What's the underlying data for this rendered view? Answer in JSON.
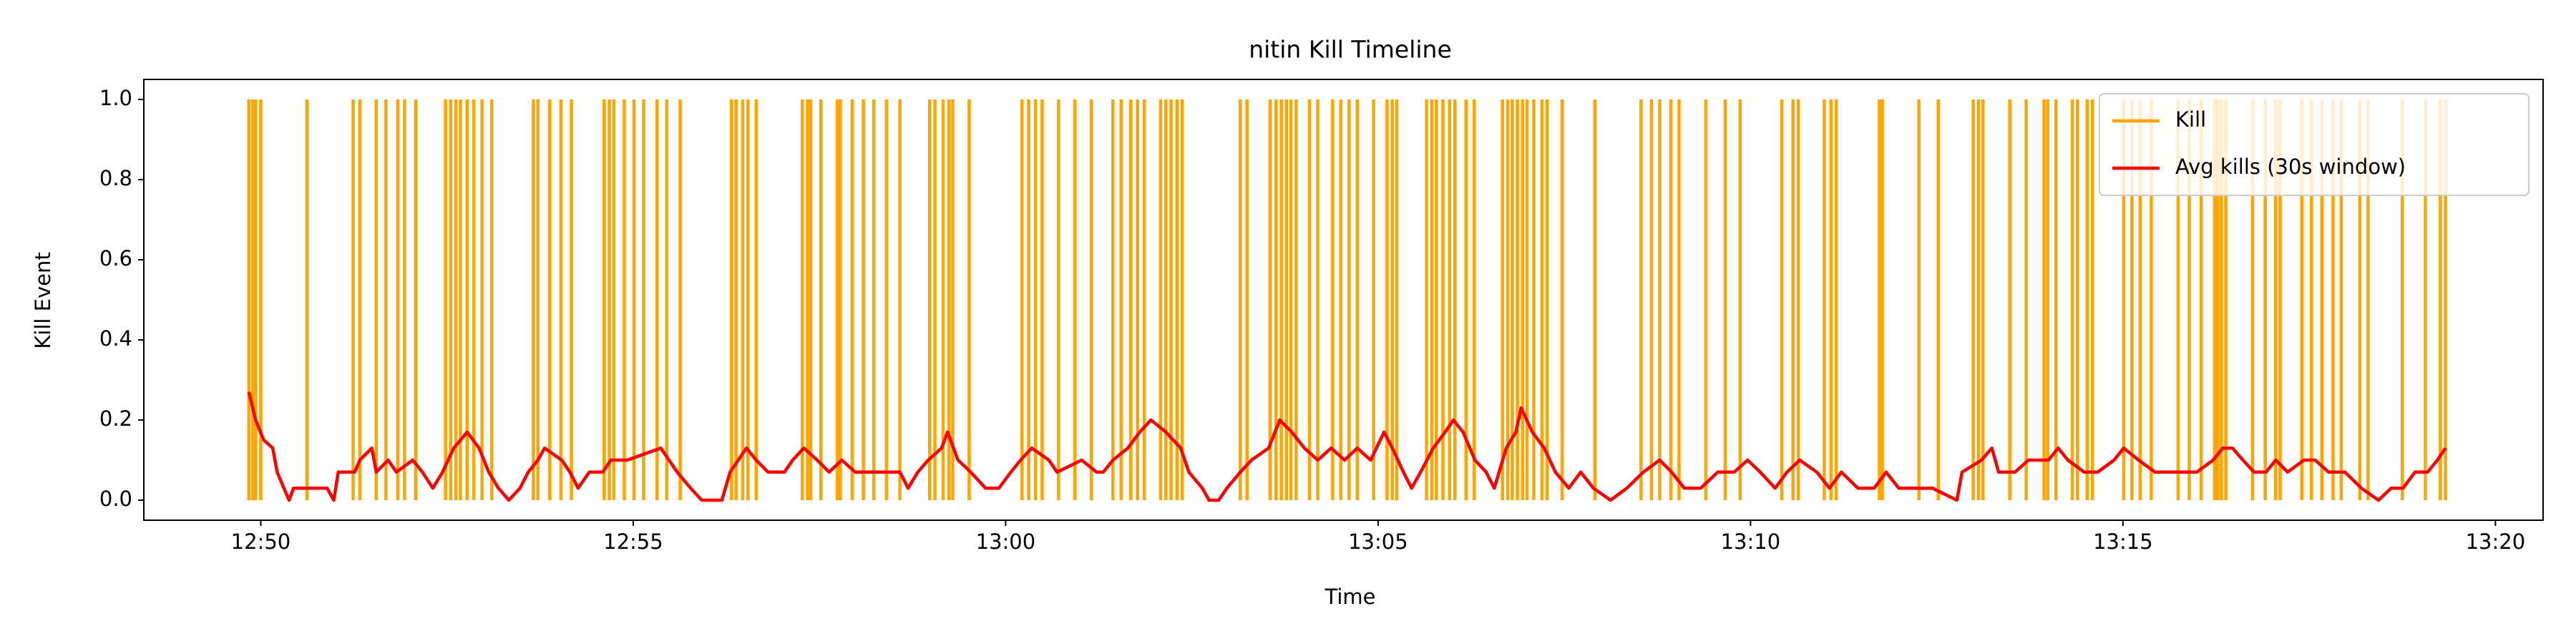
{
  "chart_data": {
    "type": "line",
    "title": "nitin Kill Timeline",
    "xlabel": "Time",
    "ylabel": "Kill Event",
    "xlim": [
      768.43,
      800.64
    ],
    "ylim": [
      -0.05,
      1.05
    ],
    "xticks": [
      {
        "value": 770,
        "label": "12:50"
      },
      {
        "value": 775,
        "label": "12:55"
      },
      {
        "value": 780,
        "label": "13:00"
      },
      {
        "value": 785,
        "label": "13:05"
      },
      {
        "value": 790,
        "label": "13:10"
      },
      {
        "value": 795,
        "label": "13:15"
      },
      {
        "value": 800,
        "label": "13:20"
      }
    ],
    "yticks": [
      {
        "value": 0,
        "label": "0.0"
      },
      0.2,
      0.4,
      0.6,
      0.8,
      {
        "value": 1,
        "label": "1.0"
      }
    ],
    "legend": "upper right",
    "series": [
      {
        "name": "Kill",
        "color": "orange",
        "mark": "vlines",
        "x": [
          769.84,
          769.89,
          769.93,
          770.0,
          770.62,
          771.24,
          771.33,
          771.55,
          771.68,
          771.84,
          771.93,
          772.08,
          772.48,
          772.55,
          772.62,
          772.68,
          772.77,
          772.86,
          772.97,
          773.1,
          773.66,
          773.72,
          773.88,
          774.03,
          774.17,
          774.61,
          774.68,
          774.74,
          774.88,
          775.01,
          775.14,
          775.32,
          775.45,
          775.63,
          776.32,
          776.38,
          776.47,
          776.54,
          776.65,
          777.27,
          777.34,
          777.38,
          777.52,
          777.74,
          777.78,
          777.94,
          778.09,
          778.23,
          778.4,
          778.58,
          778.98,
          779.05,
          779.16,
          779.24,
          779.29,
          779.51,
          780.22,
          780.31,
          780.4,
          780.49,
          780.71,
          780.93,
          781.15,
          781.44,
          781.55,
          781.68,
          781.77,
          781.86,
          782.08,
          782.15,
          782.22,
          782.3,
          782.37,
          783.15,
          783.24,
          783.55,
          783.63,
          783.7,
          783.77,
          783.83,
          783.9,
          784.08,
          784.19,
          784.39,
          784.5,
          784.61,
          784.72,
          784.94,
          785.12,
          785.19,
          785.25,
          785.65,
          785.72,
          785.78,
          785.87,
          785.96,
          786.03,
          786.18,
          786.29,
          786.67,
          786.74,
          786.8,
          786.87,
          786.94,
          787.0,
          787.09,
          787.2,
          787.27,
          787.47,
          787.91,
          788.53,
          788.67,
          788.78,
          788.93,
          789.04,
          789.4,
          789.66,
          789.86,
          790.42,
          790.57,
          790.64,
          790.99,
          791.08,
          791.15,
          791.73,
          791.77,
          792.26,
          792.52,
          792.99,
          793.06,
          793.12,
          793.48,
          793.7,
          793.94,
          793.99,
          794.1,
          794.32,
          794.39,
          794.52,
          794.59,
          795.01,
          795.12,
          795.23,
          795.38,
          795.74,
          795.89,
          796.05,
          796.23,
          796.27,
          796.32,
          796.38,
          796.74,
          796.91,
          797.05,
          797.11,
          797.4,
          797.53,
          797.67,
          797.82,
          797.93,
          798.18,
          798.29,
          798.75,
          799.06,
          799.26,
          799.33
        ],
        "values": [
          1,
          1,
          1,
          1,
          1,
          1,
          1,
          1,
          1,
          1,
          1,
          1,
          1,
          1,
          1,
          1,
          1,
          1,
          1,
          1,
          1,
          1,
          1,
          1,
          1,
          1,
          1,
          1,
          1,
          1,
          1,
          1,
          1,
          1,
          1,
          1,
          1,
          1,
          1,
          1,
          1,
          1,
          1,
          1,
          1,
          1,
          1,
          1,
          1,
          1,
          1,
          1,
          1,
          1,
          1,
          1,
          1,
          1,
          1,
          1,
          1,
          1,
          1,
          1,
          1,
          1,
          1,
          1,
          1,
          1,
          1,
          1,
          1,
          1,
          1,
          1,
          1,
          1,
          1,
          1,
          1,
          1,
          1,
          1,
          1,
          1,
          1,
          1,
          1,
          1,
          1,
          1,
          1,
          1,
          1,
          1,
          1,
          1,
          1,
          1,
          1,
          1,
          1,
          1,
          1,
          1,
          1,
          1,
          1,
          1,
          1,
          1,
          1,
          1,
          1,
          1,
          1,
          1,
          1,
          1,
          1,
          1,
          1,
          1,
          1,
          1,
          1,
          1,
          1,
          1,
          1,
          1,
          1,
          1,
          1,
          1,
          1,
          1,
          1,
          1,
          1,
          1,
          1,
          1,
          1,
          1,
          1,
          1,
          1,
          1,
          1,
          1,
          1,
          1,
          1,
          1,
          1,
          1,
          1,
          1,
          1,
          1,
          1,
          1,
          1,
          1
        ]
      },
      {
        "name": "Avg kills (30s window)",
        "color": "red",
        "mark": "line",
        "x": [
          769.84,
          769.93,
          770.04,
          770.16,
          770.22,
          770.31,
          770.38,
          770.44,
          770.89,
          770.98,
          771.04,
          771.26,
          771.33,
          771.49,
          771.55,
          771.71,
          771.82,
          772.04,
          772.17,
          772.31,
          772.44,
          772.59,
          772.77,
          772.93,
          773.06,
          773.19,
          773.33,
          773.48,
          773.59,
          773.72,
          773.81,
          774.04,
          774.15,
          774.26,
          774.41,
          774.59,
          774.7,
          774.92,
          775.37,
          775.48,
          775.59,
          775.77,
          775.92,
          776.19,
          776.3,
          776.41,
          776.52,
          776.65,
          776.81,
          777.03,
          777.14,
          777.29,
          777.47,
          777.63,
          777.8,
          777.98,
          778.58,
          778.69,
          778.82,
          778.96,
          779.14,
          779.22,
          779.36,
          779.53,
          779.73,
          779.91,
          780.07,
          780.2,
          780.35,
          780.58,
          780.69,
          781.02,
          781.22,
          781.31,
          781.44,
          781.64,
          781.8,
          781.95,
          782.15,
          782.35,
          782.46,
          782.64,
          782.73,
          782.86,
          782.97,
          783.15,
          783.3,
          783.53,
          783.68,
          783.84,
          784.01,
          784.19,
          784.37,
          784.55,
          784.72,
          784.9,
          785.08,
          785.19,
          785.34,
          785.45,
          785.57,
          785.74,
          785.9,
          786.01,
          786.14,
          786.3,
          786.45,
          786.56,
          786.72,
          786.85,
          786.92,
          787.07,
          787.23,
          787.38,
          787.56,
          787.72,
          787.89,
          788.12,
          788.34,
          788.56,
          788.78,
          788.94,
          789.11,
          789.33,
          789.56,
          789.78,
          789.96,
          790.13,
          790.33,
          790.49,
          790.66,
          790.89,
          791.06,
          791.22,
          791.44,
          791.66,
          791.82,
          791.99,
          792.22,
          792.44,
          792.77,
          792.84,
          793.1,
          793.24,
          793.33,
          793.55,
          793.73,
          794.0,
          794.13,
          794.26,
          794.48,
          794.66,
          794.88,
          795.01,
          795.21,
          795.43,
          795.76,
          795.99,
          796.21,
          796.34,
          796.47,
          796.61,
          796.76,
          796.92,
          797.05,
          797.21,
          797.43,
          797.58,
          797.76,
          797.98,
          798.2,
          798.43,
          798.6,
          798.76,
          798.92,
          799.09,
          799.22,
          799.33
        ],
        "values": [
          0.27,
          0.2,
          0.15,
          0.13,
          0.07,
          0.03,
          0,
          0.03,
          0.03,
          0,
          0.07,
          0.07,
          0.1,
          0.13,
          0.07,
          0.1,
          0.07,
          0.1,
          0.07,
          0.03,
          0.07,
          0.13,
          0.17,
          0.13,
          0.07,
          0.03,
          0,
          0.03,
          0.07,
          0.1,
          0.13,
          0.1,
          0.07,
          0.03,
          0.07,
          0.07,
          0.1,
          0.1,
          0.13,
          0.1,
          0.07,
          0.03,
          0,
          0,
          0.07,
          0.1,
          0.13,
          0.1,
          0.07,
          0.07,
          0.1,
          0.13,
          0.1,
          0.07,
          0.1,
          0.07,
          0.07,
          0.03,
          0.07,
          0.1,
          0.13,
          0.17,
          0.1,
          0.07,
          0.03,
          0.03,
          0.07,
          0.1,
          0.13,
          0.1,
          0.07,
          0.1,
          0.07,
          0.07,
          0.1,
          0.13,
          0.17,
          0.2,
          0.17,
          0.13,
          0.07,
          0.03,
          0,
          0,
          0.03,
          0.07,
          0.1,
          0.13,
          0.2,
          0.17,
          0.13,
          0.1,
          0.13,
          0.1,
          0.13,
          0.1,
          0.17,
          0.13,
          0.07,
          0.03,
          0.07,
          0.13,
          0.17,
          0.2,
          0.17,
          0.1,
          0.07,
          0.03,
          0.13,
          0.17,
          0.23,
          0.17,
          0.13,
          0.07,
          0.03,
          0.07,
          0.03,
          0,
          0.03,
          0.07,
          0.1,
          0.07,
          0.03,
          0.03,
          0.07,
          0.07,
          0.1,
          0.07,
          0.03,
          0.07,
          0.1,
          0.07,
          0.03,
          0.07,
          0.03,
          0.03,
          0.07,
          0.03,
          0.03,
          0.03,
          0,
          0.07,
          0.1,
          0.13,
          0.07,
          0.07,
          0.1,
          0.1,
          0.13,
          0.1,
          0.07,
          0.07,
          0.1,
          0.13,
          0.1,
          0.07,
          0.07,
          0.07,
          0.1,
          0.13,
          0.13,
          0.1,
          0.07,
          0.07,
          0.1,
          0.07,
          0.1,
          0.1,
          0.07,
          0.07,
          0.03,
          0,
          0.03,
          0.03,
          0.07,
          0.07,
          0.1,
          0.13
        ]
      }
    ]
  }
}
